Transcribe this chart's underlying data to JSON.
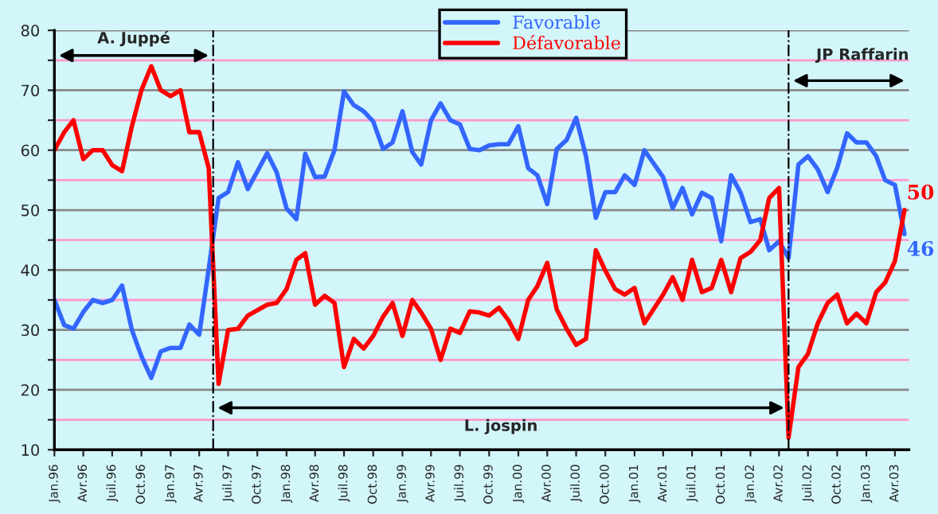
{
  "chart_data": {
    "type": "line",
    "x": [
      "1996-01",
      "1996-02",
      "1996-03",
      "1996-04",
      "1996-05",
      "1996-06",
      "1996-07",
      "1996-08",
      "1996-09",
      "1996-10",
      "1996-11",
      "1996-12",
      "1997-01",
      "1997-02",
      "1997-03",
      "1997-04",
      "1997-05",
      "1997-06",
      "1997-07",
      "1997-08",
      "1997-09",
      "1997-11",
      "1997-12",
      "1998-01",
      "1998-02",
      "1998-03",
      "1998-04",
      "1998-05",
      "1998-06",
      "1998-07",
      "1998-08",
      "1998-09",
      "1998-10",
      "1998-11",
      "1998-12",
      "1999-01",
      "1999-02",
      "1999-03",
      "1999-04",
      "1999-05",
      "1999-06",
      "1999-07",
      "1999-08",
      "1999-09",
      "1999-10",
      "1999-11",
      "1999-12",
      "2000-01",
      "2000-02",
      "2000-03",
      "2000-04",
      "2000-05",
      "2000-06",
      "2000-07",
      "2000-08",
      "2000-09",
      "2000-10",
      "2000-11",
      "2000-12",
      "2001-01",
      "2001-02",
      "2001-04",
      "2001-05",
      "2001-06",
      "2001-07",
      "2001-08",
      "2001-09",
      "2001-10",
      "2001-11",
      "2001-12",
      "2002-01",
      "2002-02",
      "2002-03",
      "2002-04",
      "2002-05",
      "2002-06",
      "2002-07",
      "2002-08",
      "2002-09",
      "2002-10",
      "2002-11",
      "2002-12",
      "2003-01",
      "2003-02",
      "2003-03",
      "2003-04",
      "2003-05"
    ],
    "series": [
      {
        "name": "Favorable",
        "color": "#3366ff",
        "values": [
          35,
          30.8,
          30.2,
          33,
          35,
          34.5,
          35,
          37.4,
          30,
          25.6,
          22,
          26.4,
          27,
          27,
          30.9,
          29.2,
          40.2,
          52,
          53,
          58,
          53.5,
          59.5,
          56.3,
          50.3,
          48.5,
          59.4,
          55.5,
          55.6,
          60,
          69.8,
          67.5,
          66.5,
          64.8,
          60.2,
          61.3,
          66.5,
          59.7,
          57.6,
          65,
          67.8,
          65,
          64.3,
          60.2,
          60,
          60.8,
          61,
          61,
          64,
          57,
          55.8,
          51,
          60.2,
          61.7,
          65.4,
          59,
          48.7,
          53,
          53,
          55.8,
          54.2,
          60,
          55.5,
          50.3,
          53.7,
          49.3,
          52.9,
          52,
          44.8,
          55.8,
          52.9,
          48,
          48.5,
          43.3,
          44.8,
          42,
          57.6,
          59,
          56.8,
          53,
          57,
          62.8,
          61.3,
          61.3,
          59,
          55,
          54.2,
          46
        ],
        "value_labels": [
          null,
          null,
          null,
          null,
          null,
          null,
          null,
          null,
          null,
          null,
          null,
          null,
          null,
          null,
          null,
          null,
          null,
          null,
          null,
          null,
          null,
          null,
          null,
          null,
          null,
          null,
          null,
          null,
          null,
          null,
          null,
          null,
          null,
          null,
          null,
          null,
          null,
          null,
          null,
          null,
          null,
          null,
          null,
          null,
          null,
          null,
          null,
          null,
          null,
          null,
          null,
          null,
          null,
          null,
          null,
          null,
          null,
          null,
          null,
          null,
          null,
          null,
          null,
          null,
          null,
          null,
          null,
          null,
          null,
          null,
          null,
          null,
          null,
          null,
          null,
          null,
          null,
          null,
          null,
          null,
          null,
          null,
          null,
          null,
          null,
          null,
          "46"
        ]
      },
      {
        "name": "Défavorable",
        "color": "#ff0000",
        "values": [
          60,
          63,
          65,
          58.5,
          60,
          60,
          57.5,
          56.5,
          64,
          70,
          74,
          70,
          69,
          70,
          63,
          63,
          57,
          21,
          30,
          30.2,
          32.4,
          34.2,
          34.5,
          36.8,
          41.7,
          42.8,
          34.2,
          35.7,
          34.5,
          23.8,
          28.5,
          26.9,
          29,
          32.2,
          34.5,
          29,
          35,
          32.9,
          30.2,
          25,
          30.2,
          29.5,
          33.1,
          32.9,
          32.4,
          33.7,
          31.6,
          28.5,
          35,
          37.3,
          41.2,
          33.4,
          30.2,
          27.5,
          28.5,
          43.3,
          39.9,
          36.8,
          35.9,
          37,
          31.1,
          35.9,
          38.8,
          35,
          41.7,
          36.3,
          37,
          41.7,
          36.3,
          42,
          43,
          45,
          52,
          53.7,
          12,
          23.8,
          26,
          31.1,
          34.5,
          35.9,
          31.1,
          32.7,
          31.1,
          36.3,
          37.9,
          41.5,
          50
        ],
        "value_labels": [
          null,
          null,
          null,
          null,
          null,
          null,
          null,
          null,
          null,
          null,
          null,
          null,
          null,
          null,
          null,
          null,
          null,
          null,
          null,
          null,
          null,
          null,
          null,
          null,
          null,
          null,
          null,
          null,
          null,
          null,
          null,
          null,
          null,
          null,
          null,
          null,
          null,
          null,
          null,
          null,
          null,
          null,
          null,
          null,
          null,
          null,
          null,
          null,
          null,
          null,
          null,
          null,
          null,
          null,
          null,
          null,
          null,
          null,
          null,
          null,
          null,
          null,
          null,
          null,
          null,
          null,
          null,
          null,
          null,
          null,
          null,
          null,
          null,
          null,
          null,
          null,
          null,
          null,
          null,
          null,
          null,
          null,
          null,
          null,
          null,
          null,
          "50"
        ]
      }
    ],
    "xlim": [
      "1996-01",
      "2003-05-15"
    ],
    "xticks": [
      {
        "value": "1996-01",
        "label": "Jan.96"
      },
      {
        "value": "1996-04",
        "label": "Avr.96"
      },
      {
        "value": "1996-07",
        "label": "Juil.96"
      },
      {
        "value": "1996-10",
        "label": "Oct.96"
      },
      {
        "value": "1997-01",
        "label": "Jan.97"
      },
      {
        "value": "1997-04",
        "label": "Avr.97"
      },
      {
        "value": "1997-07",
        "label": "Juil.97"
      },
      {
        "value": "1997-10",
        "label": "Oct.97"
      },
      {
        "value": "1998-01",
        "label": "Jan.98"
      },
      {
        "value": "1998-04",
        "label": "Avr.98"
      },
      {
        "value": "1998-07",
        "label": "Juil.98"
      },
      {
        "value": "1998-10",
        "label": "Oct.98"
      },
      {
        "value": "1999-01",
        "label": "Jan.99"
      },
      {
        "value": "1999-04",
        "label": "Avr.99"
      },
      {
        "value": "1999-07",
        "label": "Juil.99"
      },
      {
        "value": "1999-10",
        "label": "Oct.99"
      },
      {
        "value": "2000-01",
        "label": "Jan.00"
      },
      {
        "value": "2000-04",
        "label": "Avr.00"
      },
      {
        "value": "2000-07",
        "label": "Juil.00"
      },
      {
        "value": "2000-10",
        "label": "Oct.00"
      },
      {
        "value": "2001-01",
        "label": "Jan.01"
      },
      {
        "value": "2001-04",
        "label": "Avr.01"
      },
      {
        "value": "2001-07",
        "label": "Juil.01"
      },
      {
        "value": "2001-10",
        "label": "Oct.01"
      },
      {
        "value": "2002-01",
        "label": "Jan.02"
      },
      {
        "value": "2002-04",
        "label": "Avr.02"
      },
      {
        "value": "2002-07",
        "label": "Juil.02"
      },
      {
        "value": "2002-10",
        "label": "Oct.02"
      },
      {
        "value": "2003-01",
        "label": "Jan.03"
      },
      {
        "value": "2003-04",
        "label": "Avr.03"
      }
    ],
    "ylim": [
      10,
      80
    ],
    "yticks": [
      10,
      {
        "value": 15,
        "label": null
      },
      20,
      {
        "value": 25,
        "label": null
      },
      30,
      {
        "value": 35,
        "label": null
      },
      40,
      {
        "value": 45,
        "label": null
      },
      50,
      {
        "value": 55,
        "label": null
      },
      60,
      {
        "value": 65,
        "label": null
      },
      70,
      {
        "value": 75,
        "label": null
      },
      80
    ],
    "grid": "y",
    "legend": "top",
    "ref_lines": [
      {
        "axis": "x",
        "value": "1997-05-15",
        "line_style": "dashdot",
        "color": "#000000"
      },
      {
        "axis": "x",
        "value": "2002-05",
        "line_style": "dashdot",
        "color": "#000000"
      }
    ],
    "annotations": [
      "A. Juppé",
      "L. jospin",
      "JP Raffarin"
    ]
  }
}
